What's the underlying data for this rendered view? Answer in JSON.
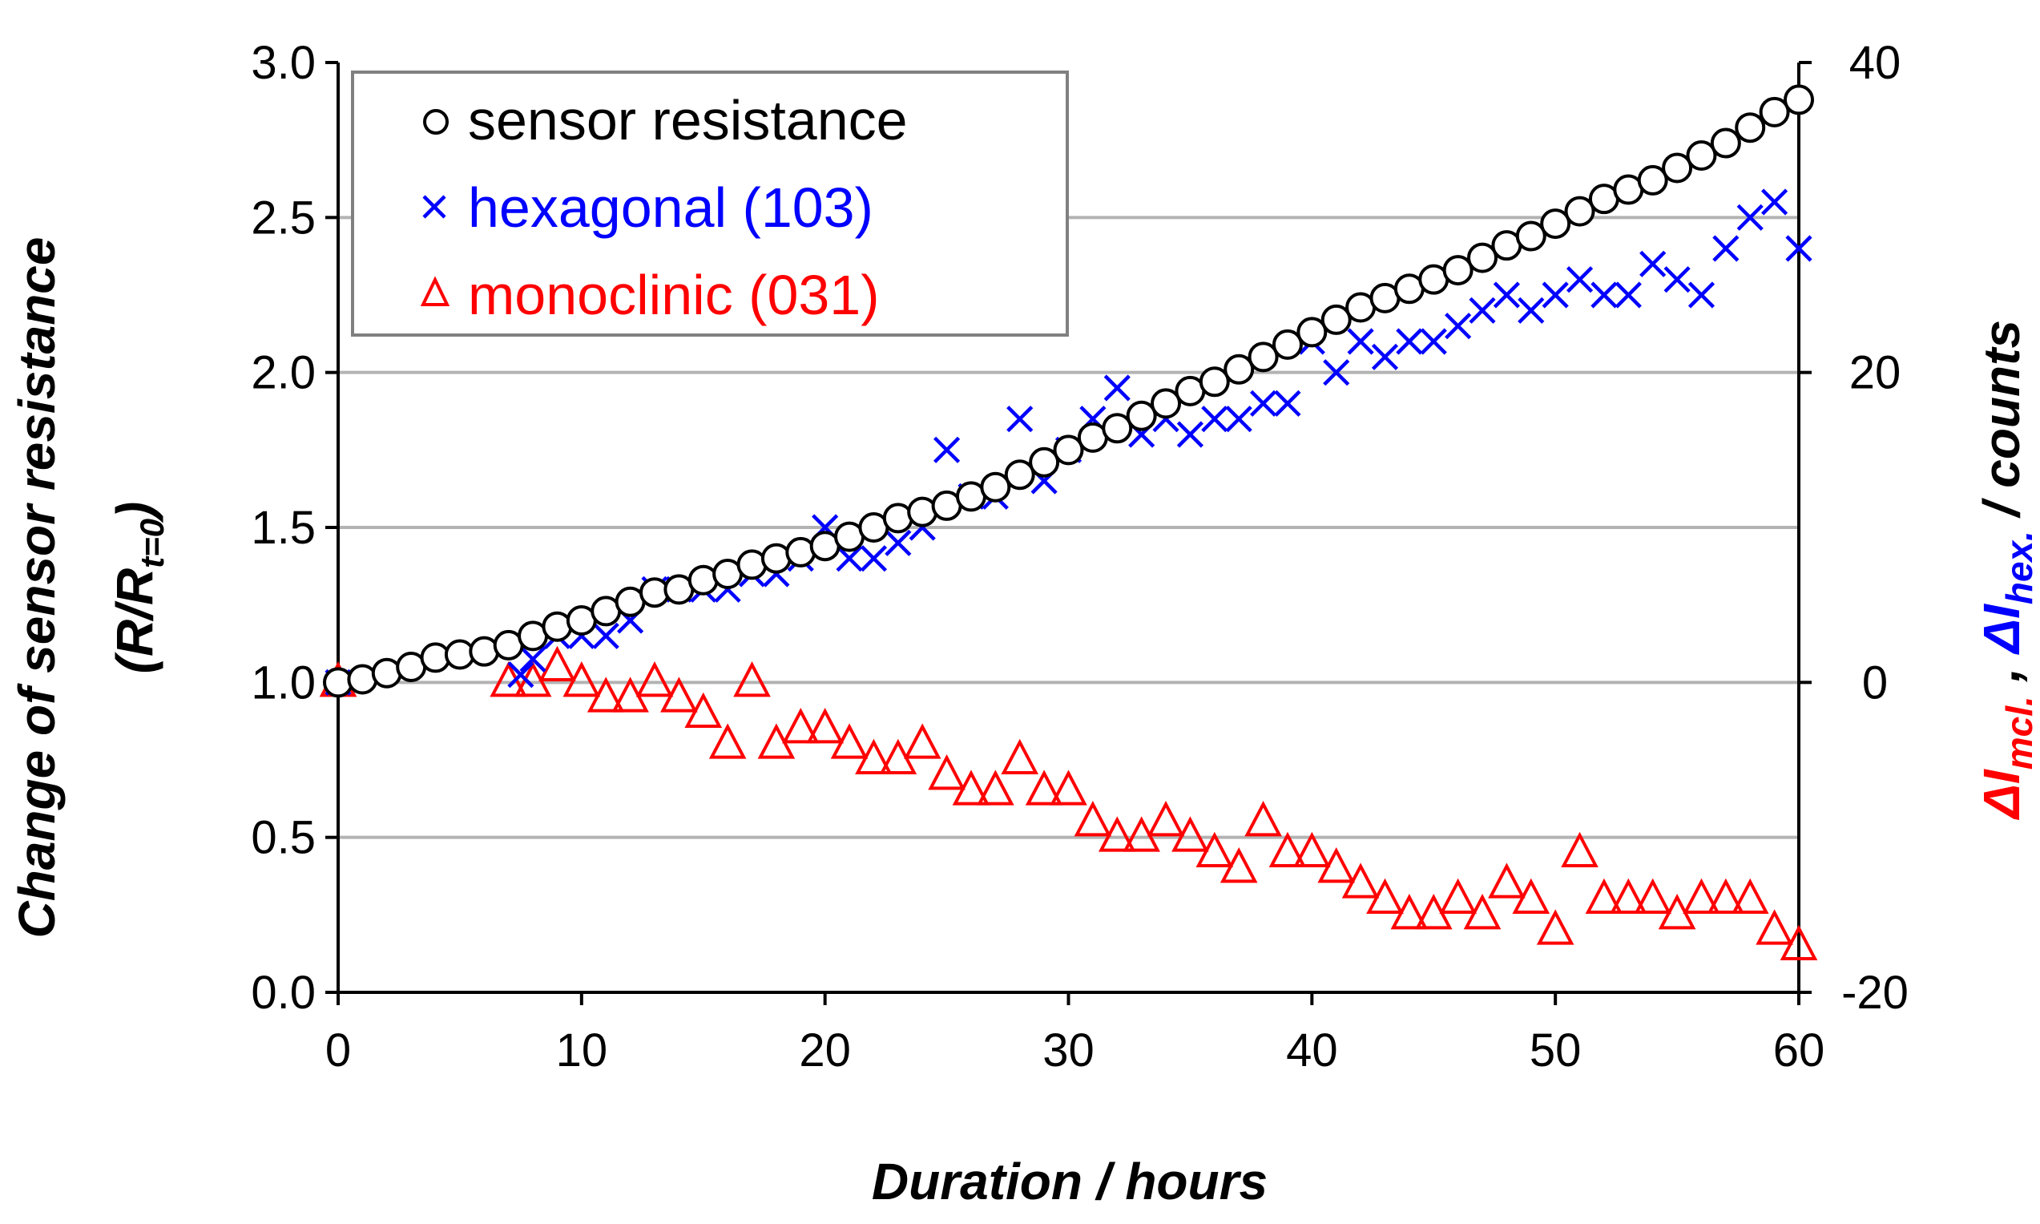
{
  "chart_data": {
    "type": "scatter",
    "title": "",
    "xlabel": "Duration  / hours",
    "ylabel": "Change of sensor  resistance",
    "ylabel_sub": {
      "open": "(R/R",
      "subscript": "t=0",
      "close": ")"
    },
    "y2label": {
      "mcl_symbol": "ΔI",
      "mcl_subscript": "mcl.",
      "separator": " , ",
      "hex_symbol": "ΔI",
      "hex_subscript": "hex.",
      "unit": "  / counts"
    },
    "xlim": [
      0,
      60
    ],
    "ylim": [
      0.0,
      3.0
    ],
    "y2lim": [
      -20,
      40
    ],
    "xticks": [
      "0",
      "10",
      "20",
      "30",
      "40",
      "50",
      "60"
    ],
    "yticks": [
      "0.0",
      "0.5",
      "1.0",
      "1.5",
      "2.0",
      "2.5",
      "3.0"
    ],
    "y2ticks": [
      "-20",
      "0",
      "20",
      "40"
    ],
    "grid": true,
    "legend_position": "top-left",
    "series": [
      {
        "name": "sensor resistance",
        "axis": "left",
        "marker": "circle",
        "color": "#000000",
        "x": [
          0,
          1,
          2,
          3,
          4,
          5,
          6,
          7,
          8,
          9,
          10,
          11,
          12,
          13,
          14,
          15,
          16,
          17,
          18,
          19,
          20,
          21,
          22,
          23,
          24,
          25,
          26,
          27,
          28,
          29,
          30,
          31,
          32,
          33,
          34,
          35,
          36,
          37,
          38,
          39,
          40,
          41,
          42,
          43,
          44,
          45,
          46,
          47,
          48,
          49,
          50,
          51,
          52,
          53,
          54,
          55,
          56,
          57,
          58,
          59,
          60
        ],
        "y": [
          1.0,
          1.01,
          1.03,
          1.05,
          1.08,
          1.09,
          1.1,
          1.12,
          1.15,
          1.18,
          1.2,
          1.23,
          1.26,
          1.29,
          1.3,
          1.33,
          1.35,
          1.38,
          1.4,
          1.42,
          1.44,
          1.47,
          1.5,
          1.53,
          1.55,
          1.57,
          1.6,
          1.63,
          1.67,
          1.71,
          1.75,
          1.79,
          1.82,
          1.86,
          1.9,
          1.94,
          1.97,
          2.01,
          2.05,
          2.09,
          2.13,
          2.17,
          2.21,
          2.24,
          2.27,
          2.3,
          2.33,
          2.37,
          2.41,
          2.44,
          2.48,
          2.52,
          2.56,
          2.59,
          2.62,
          2.66,
          2.7,
          2.74,
          2.79,
          2.84,
          2.88
        ]
      },
      {
        "name": "hexagonal (103)",
        "axis": "right",
        "marker": "x",
        "color": "#0000ff",
        "x": [
          0,
          7.5,
          8,
          9,
          10,
          11,
          12,
          13,
          14,
          15,
          16,
          17,
          18,
          19,
          20,
          21,
          22,
          23,
          24,
          25,
          26,
          27,
          28,
          29,
          30,
          31,
          32,
          33,
          34,
          35,
          36,
          37,
          38,
          39,
          40,
          41,
          42,
          43,
          44,
          45,
          46,
          47,
          48,
          49,
          50,
          51,
          52,
          53,
          54,
          55,
          56,
          57,
          58,
          59,
          60
        ],
        "y": [
          0,
          0.5,
          1.5,
          3,
          3,
          3,
          4,
          6,
          6,
          6,
          6,
          7,
          7,
          8,
          10,
          8,
          8,
          9,
          10,
          15,
          12,
          12,
          17,
          13,
          15,
          17,
          19,
          16,
          17,
          16,
          17,
          17,
          18,
          18,
          22,
          20,
          22,
          21,
          22,
          22,
          23,
          24,
          25,
          24,
          25,
          26,
          25,
          25,
          27,
          26,
          25,
          28,
          30,
          31,
          28
        ]
      },
      {
        "name": "monoclinic (031)",
        "axis": "right",
        "marker": "triangle",
        "color": "#ff0000",
        "x": [
          0,
          7,
          8,
          9,
          10,
          11,
          12,
          13,
          14,
          15,
          16,
          17,
          18,
          19,
          20,
          21,
          22,
          23,
          24,
          25,
          26,
          27,
          28,
          29,
          30,
          31,
          32,
          33,
          34,
          35,
          36,
          37,
          38,
          39,
          40,
          41,
          42,
          43,
          44,
          45,
          46,
          47,
          48,
          49,
          50,
          51,
          52,
          53,
          54,
          55,
          56,
          57,
          58,
          59,
          60
        ],
        "y": [
          0,
          0,
          0,
          1,
          0,
          -1,
          -1,
          0,
          -1,
          -2,
          -4,
          0,
          -4,
          -3,
          -3,
          -4,
          -5,
          -5,
          -4,
          -6,
          -7,
          -7,
          -5,
          -7,
          -7,
          -9,
          -10,
          -10,
          -9,
          -10,
          -11,
          -12,
          -9,
          -11,
          -11,
          -12,
          -13,
          -14,
          -15,
          -15,
          -14,
          -15,
          -13,
          -14,
          -16,
          -11,
          -14,
          -14,
          -14,
          -15,
          -14,
          -14,
          -14,
          -16,
          -17
        ]
      }
    ]
  }
}
